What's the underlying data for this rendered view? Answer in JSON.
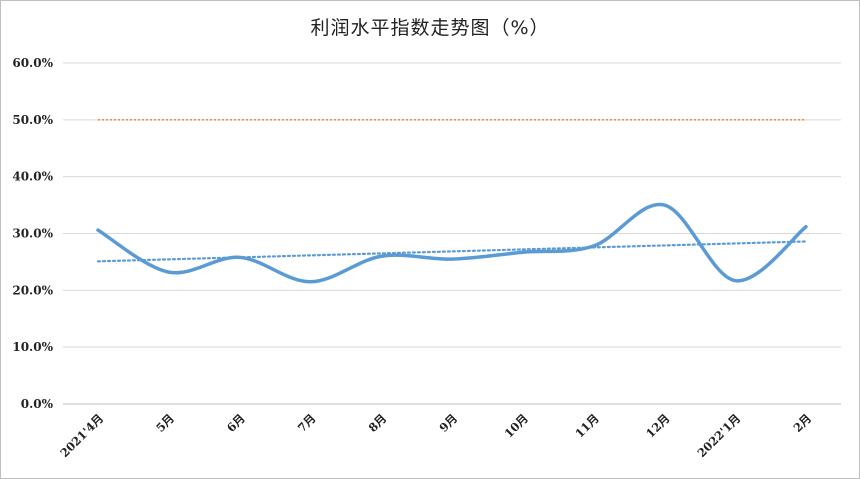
{
  "chart_data": {
    "type": "line",
    "title": "利润水平指数走势图（%）",
    "xlabel": "",
    "ylabel": "",
    "categories": [
      "2021'4月",
      "5月",
      "6月",
      "7月",
      "8月",
      "9月",
      "10月",
      "11月",
      "12月",
      "2022'1月",
      "2月"
    ],
    "series": [
      {
        "values": [
          30.6,
          23.2,
          25.8,
          21.5,
          26.0,
          25.5,
          26.7,
          27.8,
          35.0,
          21.7,
          31.2
        ],
        "color": "#5b9bd5",
        "style": "smooth"
      }
    ],
    "trendline": {
      "start": 25.1,
      "end": 28.6,
      "color": "#5b9bd5",
      "style": "dotted"
    },
    "reference_line": {
      "value": 50.0,
      "color": "#ed7d31",
      "style": "dotted"
    },
    "ylim": [
      0,
      60
    ],
    "yticks": [
      "0.0%",
      "10.0%",
      "20.0%",
      "30.0%",
      "40.0%",
      "50.0%",
      "60.0%"
    ],
    "grid": true,
    "legend": "none"
  }
}
